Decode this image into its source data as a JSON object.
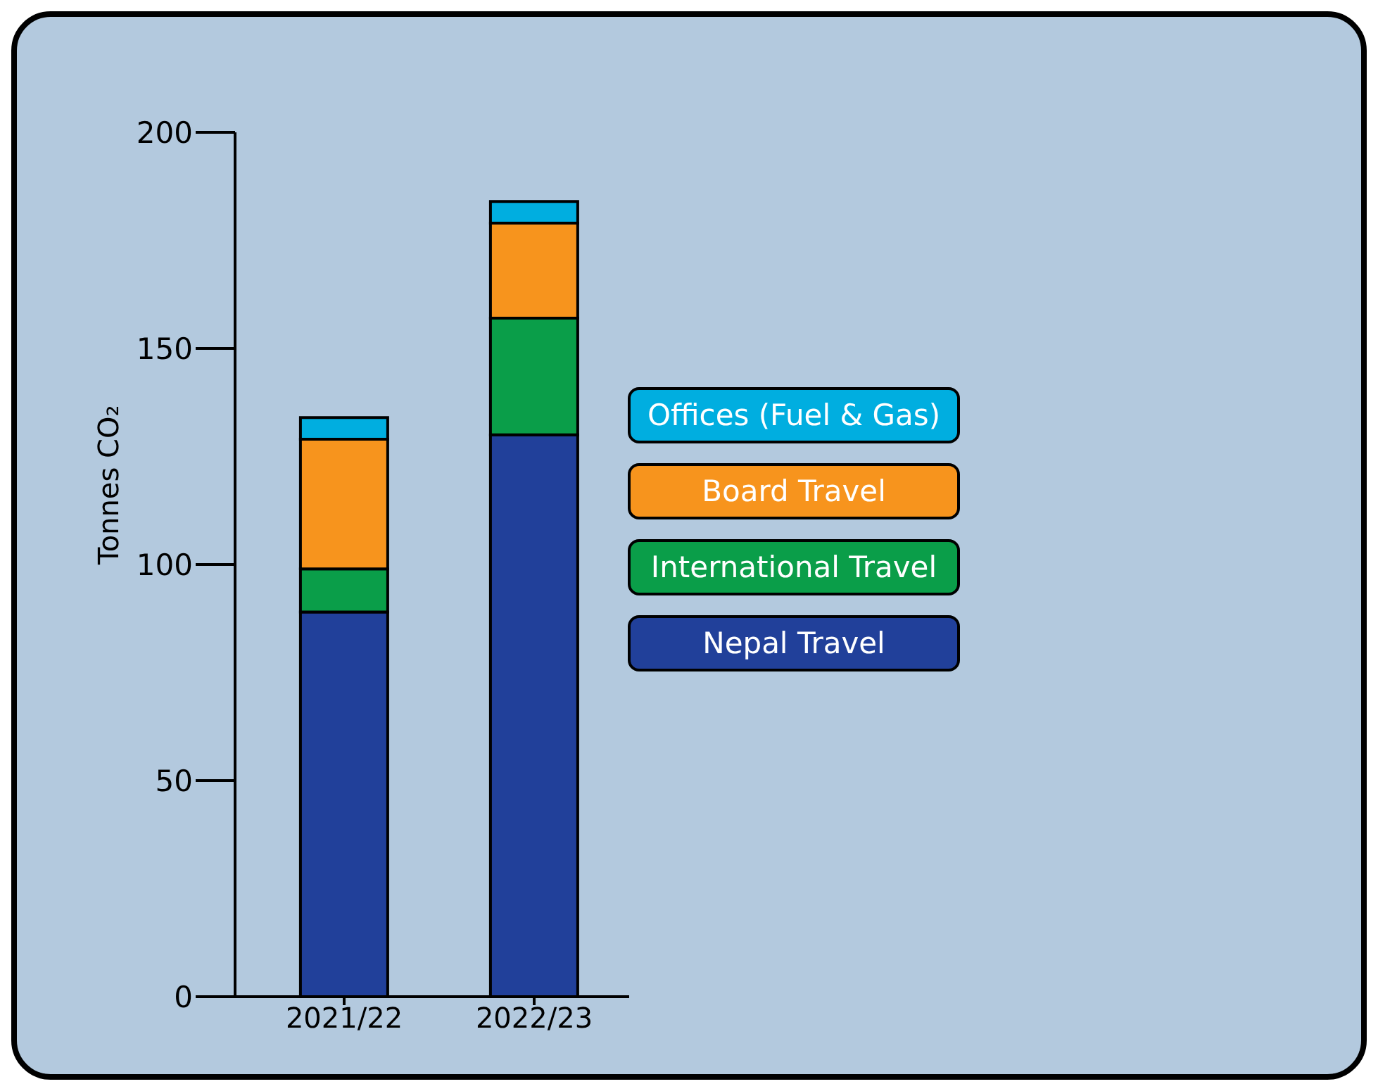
{
  "chart_data": {
    "type": "bar",
    "stacked": true,
    "ylabel": "Tonnes CO₂",
    "categories": [
      "2021/22",
      "2022/23"
    ],
    "series": [
      {
        "name": "Nepal Travel",
        "color": "#21409a",
        "values": [
          89,
          130
        ]
      },
      {
        "name": "International Travel",
        "color": "#0a9e49",
        "values": [
          10,
          27
        ]
      },
      {
        "name": "Board Travel",
        "color": "#f7941d",
        "values": [
          30,
          22
        ]
      },
      {
        "name": "Offices (Fuel & Gas)",
        "color": "#00aee0",
        "values": [
          5,
          5
        ]
      }
    ],
    "ylim": [
      0,
      200
    ],
    "yticks": [
      0,
      50,
      100,
      150,
      200
    ],
    "grid": false,
    "legend": "right"
  }
}
